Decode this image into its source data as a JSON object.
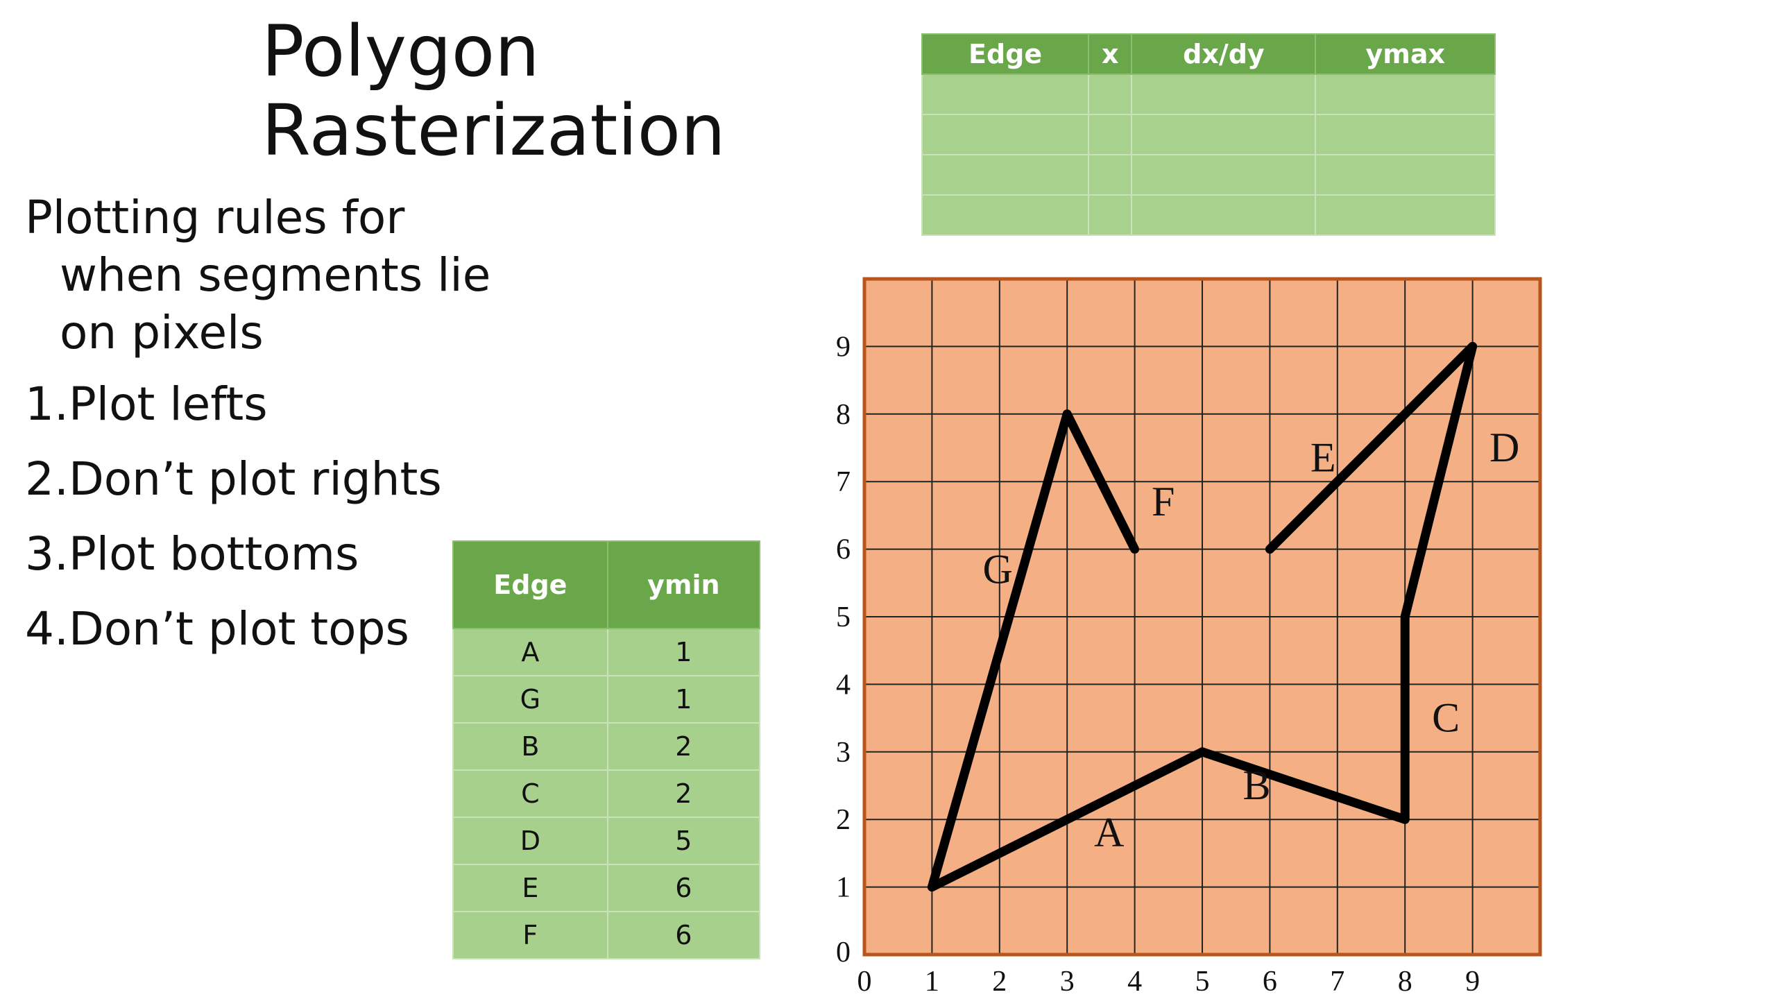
{
  "title": {
    "line1": "Polygon",
    "line2": "Rasterization"
  },
  "intro": {
    "line1": "Plotting rules for",
    "line2": "when segments lie",
    "line3": "on pixels"
  },
  "rules": [
    "1.Plot lefts",
    "2.Don’t plot rights",
    "3.Plot bottoms",
    "4.Don’t plot tops"
  ],
  "edge_table": {
    "headers": [
      "Edge",
      "x",
      "dx/dy",
      "ymax"
    ],
    "rows": [
      [
        "",
        "",
        "",
        ""
      ],
      [
        "",
        "",
        "",
        ""
      ],
      [
        "",
        "",
        "",
        ""
      ],
      [
        "",
        "",
        "",
        ""
      ]
    ]
  },
  "ymin_table": {
    "headers": [
      "Edge",
      "ymin"
    ],
    "rows": [
      [
        "A",
        "1"
      ],
      [
        "G",
        "1"
      ],
      [
        "B",
        "2"
      ],
      [
        "C",
        "2"
      ],
      [
        "D",
        "5"
      ],
      [
        "E",
        "6"
      ],
      [
        "F",
        "6"
      ]
    ]
  },
  "colors": {
    "grid_fill": "#f4b084",
    "grid_border": "#b8541c",
    "table_header": "#6aa74a",
    "table_cell": "#a8d08d",
    "polygon_stroke": "#000000"
  },
  "chart_data": {
    "type": "scatter",
    "x_ticks": [
      "0",
      "1",
      "2",
      "3",
      "4",
      "5",
      "6",
      "7",
      "8",
      "9"
    ],
    "y_ticks": [
      "0",
      "1",
      "2",
      "3",
      "4",
      "5",
      "6",
      "7",
      "8",
      "9"
    ],
    "xlim": [
      0,
      10
    ],
    "ylim": [
      0,
      10
    ],
    "grid": true,
    "edges": [
      {
        "name": "A",
        "from": [
          1,
          1
        ],
        "to": [
          5,
          3
        ],
        "label_at": [
          3.4,
          1.6
        ]
      },
      {
        "name": "B",
        "from": [
          5,
          3
        ],
        "to": [
          8,
          2
        ],
        "label_at": [
          5.6,
          2.3
        ]
      },
      {
        "name": "C",
        "from": [
          8,
          2
        ],
        "to": [
          8,
          5
        ],
        "label_at": [
          8.4,
          3.3
        ]
      },
      {
        "name": "D",
        "from": [
          8,
          5
        ],
        "to": [
          9,
          9
        ],
        "label_at": [
          9.25,
          7.3
        ]
      },
      {
        "name": "E",
        "from": [
          9,
          9
        ],
        "to": [
          6,
          6
        ],
        "label_at": [
          6.6,
          7.15
        ]
      },
      {
        "name": "F",
        "from": [
          4,
          6
        ],
        "to": [
          3,
          8
        ],
        "label_at": [
          4.25,
          6.5
        ]
      },
      {
        "name": "G",
        "from": [
          3,
          8
        ],
        "to": [
          1,
          1
        ],
        "label_at": [
          1.75,
          5.5
        ]
      }
    ]
  }
}
